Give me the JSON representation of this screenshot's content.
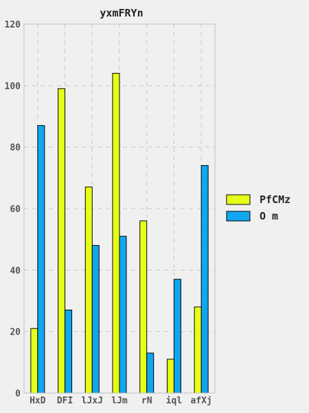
{
  "chart_data": {
    "type": "bar",
    "title": "yxmFRYn",
    "xlabel": "",
    "ylabel": "",
    "categories": [
      "HxD",
      "DFI",
      "lJxJ",
      "lJm",
      "rN",
      "iql",
      "afXj"
    ],
    "series": [
      {
        "name": "PfCMz",
        "color": "#e6ff19",
        "values": [
          21,
          99,
          67,
          104,
          56,
          11,
          28
        ]
      },
      {
        "name": "O m",
        "color": "#11a6f0",
        "values": [
          87,
          27,
          48,
          51,
          13,
          37,
          74
        ]
      }
    ],
    "ylim": [
      0,
      120
    ],
    "yticks": [
      0,
      20,
      40,
      60,
      80,
      100,
      120
    ],
    "grid": true,
    "legend_position": "right"
  }
}
